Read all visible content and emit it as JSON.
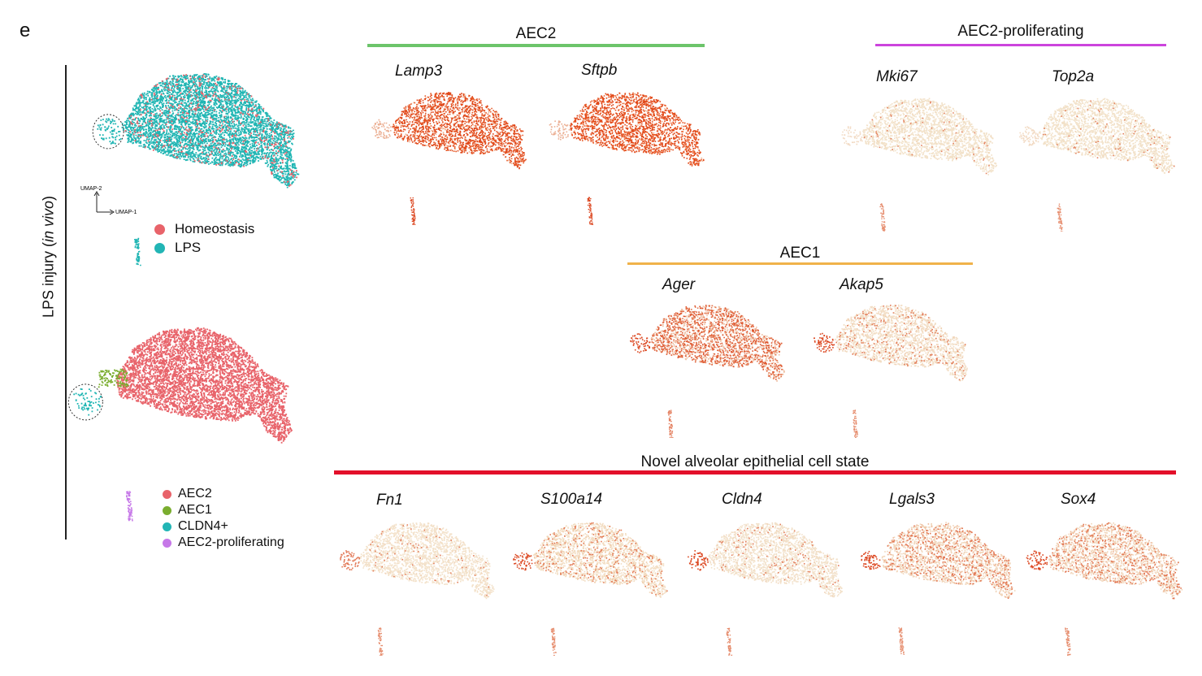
{
  "figure": {
    "panel_letter": "e",
    "side_label_prefix": "LPS injury (",
    "side_label_italic": "in vivo",
    "side_label_suffix": ")"
  },
  "axes": {
    "umap1": "UMAP-1",
    "umap2": "UMAP-2"
  },
  "condition_legend": [
    {
      "label": "Homeostasis",
      "color": "#e8636a"
    },
    {
      "label": "LPS",
      "color": "#22b5b5"
    }
  ],
  "celltype_legend": [
    {
      "label": "AEC2",
      "color": "#e8636a"
    },
    {
      "label": "AEC1",
      "color": "#7aad2f"
    },
    {
      "label": "CLDN4+",
      "color": "#22b5b5"
    },
    {
      "label": "AEC2-proliferating",
      "color": "#c678e8"
    }
  ],
  "groups": [
    {
      "title": "AEC2",
      "color": "#6cc46a"
    },
    {
      "title": "AEC2-proliferating",
      "color": "#cc44dd"
    },
    {
      "title": "AEC1",
      "color": "#f0b24a"
    },
    {
      "title": "Novel alveolar epithelial cell state",
      "color": "#e3102a"
    }
  ],
  "genes": [
    {
      "name": "Lamp3",
      "group": "AEC2",
      "body_color": "#e85a26",
      "body_level": 0.9,
      "hot_level": 0.3
    },
    {
      "name": "Sftpb",
      "group": "AEC2",
      "body_color": "#ea5a24",
      "body_level": 0.92,
      "hot_level": 0.3
    },
    {
      "name": "Mki67",
      "group": "AEC2-proliferating",
      "body_color": "#f1ddc0",
      "body_level": 0.05,
      "hot_level": 0.05
    },
    {
      "name": "Top2a",
      "group": "AEC2-proliferating",
      "body_color": "#f1ddc0",
      "body_level": 0.05,
      "hot_level": 0.05
    },
    {
      "name": "Ager",
      "group": "AEC1",
      "body_color": "#e57c55",
      "body_level": 0.6,
      "hot_level": 0.9
    },
    {
      "name": "Akap5",
      "group": "AEC1",
      "body_color": "#f0d3b4",
      "body_level": 0.2,
      "hot_level": 0.9
    },
    {
      "name": "Fn1",
      "group": "Novel alveolar epithelial cell state",
      "body_color": "#f2dcc2",
      "body_level": 0.08,
      "hot_level": 0.6
    },
    {
      "name": "S100a14",
      "group": "Novel alveolar epithelial cell state",
      "body_color": "#efcfaa",
      "body_level": 0.25,
      "hot_level": 0.9
    },
    {
      "name": "Cldn4",
      "group": "Novel alveolar epithelial cell state",
      "body_color": "#f1dac0",
      "body_level": 0.1,
      "hot_level": 0.9
    },
    {
      "name": "Lgals3",
      "group": "Novel alveolar epithelial cell state",
      "body_color": "#eebd9c",
      "body_level": 0.35,
      "hot_level": 0.9
    },
    {
      "name": "Sox4",
      "group": "Novel alveolar epithelial cell state",
      "body_color": "#eebd9c",
      "body_level": 0.35,
      "hot_level": 0.9
    }
  ]
}
